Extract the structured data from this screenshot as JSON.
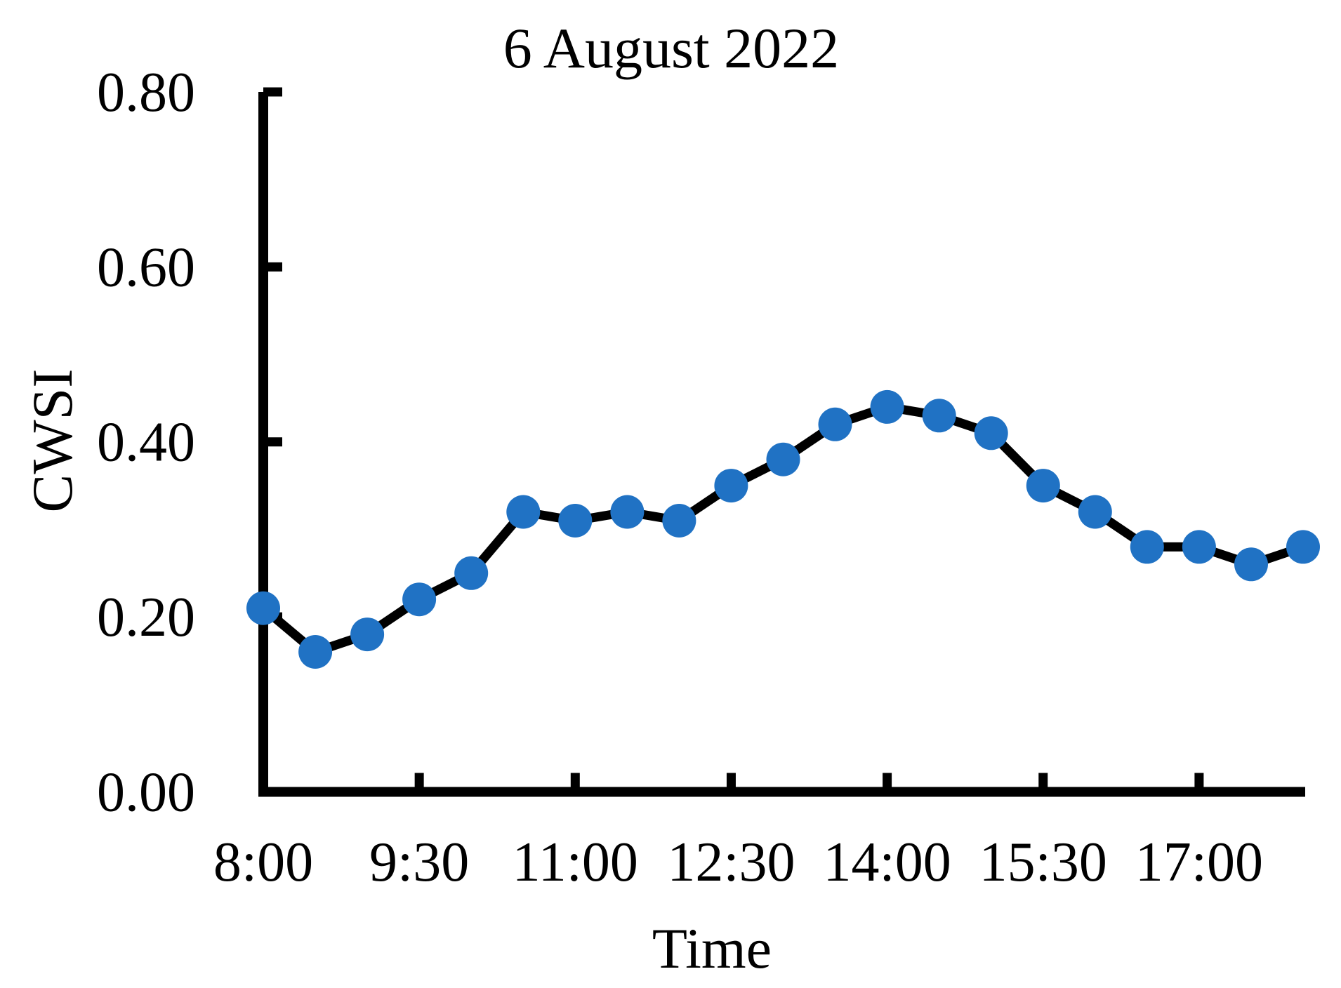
{
  "chart_data": {
    "type": "line",
    "title": "6 August 2022",
    "xlabel": "Time",
    "ylabel": "CWSI",
    "x": [
      "8:00",
      "8:30",
      "9:00",
      "9:30",
      "10:00",
      "10:30",
      "11:00",
      "11:30",
      "12:00",
      "12:30",
      "13:00",
      "13:30",
      "14:00",
      "14:30",
      "15:00",
      "15:30",
      "16:00",
      "16:30",
      "17:00",
      "17:30",
      "18:00"
    ],
    "values": [
      0.21,
      0.16,
      0.18,
      0.22,
      0.25,
      0.32,
      0.31,
      0.32,
      0.31,
      0.35,
      0.38,
      0.42,
      0.44,
      0.43,
      0.41,
      0.35,
      0.32,
      0.28,
      0.28,
      0.26,
      0.28
    ],
    "x_tick_labels": [
      "8:00",
      "9:30",
      "11:00",
      "12:30",
      "14:00",
      "15:30",
      "17:00"
    ],
    "y_tick_labels": [
      "0.00",
      "0.20",
      "0.40",
      "0.60",
      "0.80"
    ],
    "ylim": [
      0.0,
      0.8
    ],
    "x_range_hours": [
      8.0,
      18.0
    ],
    "grid": false,
    "legend": "none",
    "line_color": "#000000",
    "marker": "circle",
    "marker_color": "#2072C4",
    "axis_color": "#000000"
  }
}
